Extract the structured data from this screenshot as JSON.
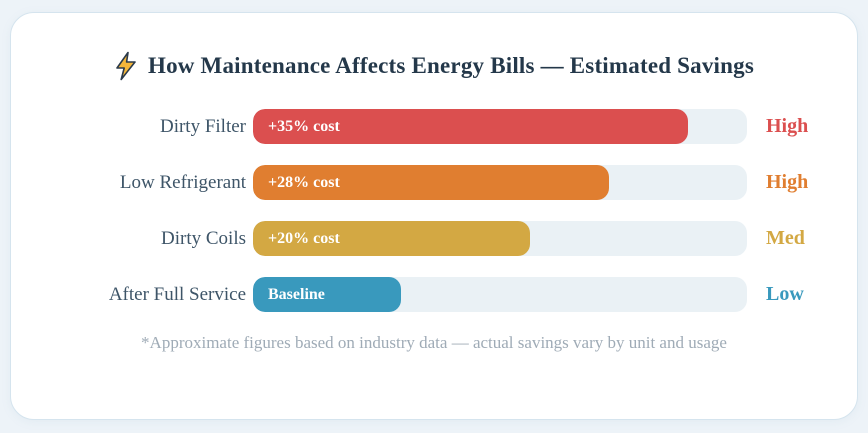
{
  "page": {
    "background": "#EDF3F8"
  },
  "card": {
    "background": "#FFFFFF",
    "border_color": "#D5E4EE"
  },
  "colors": {
    "title": "#24384A",
    "category_label": "#3E5568",
    "footnote": "#9FABB6",
    "bolt_fill": "#F5B63A",
    "bolt_outline": "#2B3A4A",
    "bar_track": "#EAF1F5"
  },
  "chart_data": {
    "type": "bar",
    "orientation": "horizontal",
    "title": "How Maintenance Affects Energy Bills — Estimated Savings",
    "title_icon": "lightning-icon",
    "categories": [
      "Dirty Filter",
      "Low Refrigerant",
      "Dirty Coils",
      "After Full Service"
    ],
    "values": [
      35,
      28,
      20,
      0
    ],
    "unit": "% added energy cost vs baseline",
    "bar_labels": [
      "+35% cost",
      "+28% cost",
      "+20% cost",
      "Baseline"
    ],
    "impact_labels": [
      "High",
      "High",
      "Med",
      "Low"
    ],
    "bar_colors": [
      "#DB4F4F",
      "#E07E30",
      "#D3A843",
      "#3999BD"
    ],
    "impact_colors": [
      "#DB4F4F",
      "#E07E30",
      "#D3A843",
      "#3999BD"
    ],
    "bar_width_pct": [
      88,
      72,
      56,
      30
    ],
    "track_color": "#EAF1F5",
    "grid": false,
    "legend": false,
    "footnote": "*Approximate figures based on industry data — actual savings vary by unit and usage"
  }
}
